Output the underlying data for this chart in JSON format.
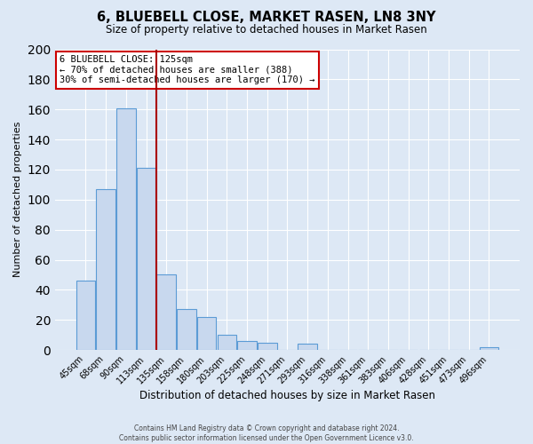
{
  "title": "6, BLUEBELL CLOSE, MARKET RASEN, LN8 3NY",
  "subtitle": "Size of property relative to detached houses in Market Rasen",
  "xlabel": "Distribution of detached houses by size in Market Rasen",
  "ylabel": "Number of detached properties",
  "bar_color": "#c8d8ee",
  "bar_edge_color": "#5b9bd5",
  "background_color": "#dde8f5",
  "grid_color": "#ffffff",
  "bin_labels": [
    "45sqm",
    "68sqm",
    "90sqm",
    "113sqm",
    "135sqm",
    "158sqm",
    "180sqm",
    "203sqm",
    "225sqm",
    "248sqm",
    "271sqm",
    "293sqm",
    "316sqm",
    "338sqm",
    "361sqm",
    "383sqm",
    "406sqm",
    "428sqm",
    "451sqm",
    "473sqm",
    "496sqm"
  ],
  "bar_heights": [
    46,
    107,
    161,
    121,
    50,
    27,
    22,
    10,
    6,
    5,
    0,
    4,
    0,
    0,
    0,
    0,
    0,
    0,
    0,
    0,
    2
  ],
  "vline_color": "#aa0000",
  "ylim": [
    0,
    200
  ],
  "yticks": [
    0,
    20,
    40,
    60,
    80,
    100,
    120,
    140,
    160,
    180,
    200
  ],
  "annotation_title": "6 BLUEBELL CLOSE: 125sqm",
  "annotation_line1": "← 70% of detached houses are smaller (388)",
  "annotation_line2": "30% of semi-detached houses are larger (170) →",
  "footer_line1": "Contains HM Land Registry data © Crown copyright and database right 2024.",
  "footer_line2": "Contains public sector information licensed under the Open Government Licence v3.0.",
  "vline_pos": 3.5
}
